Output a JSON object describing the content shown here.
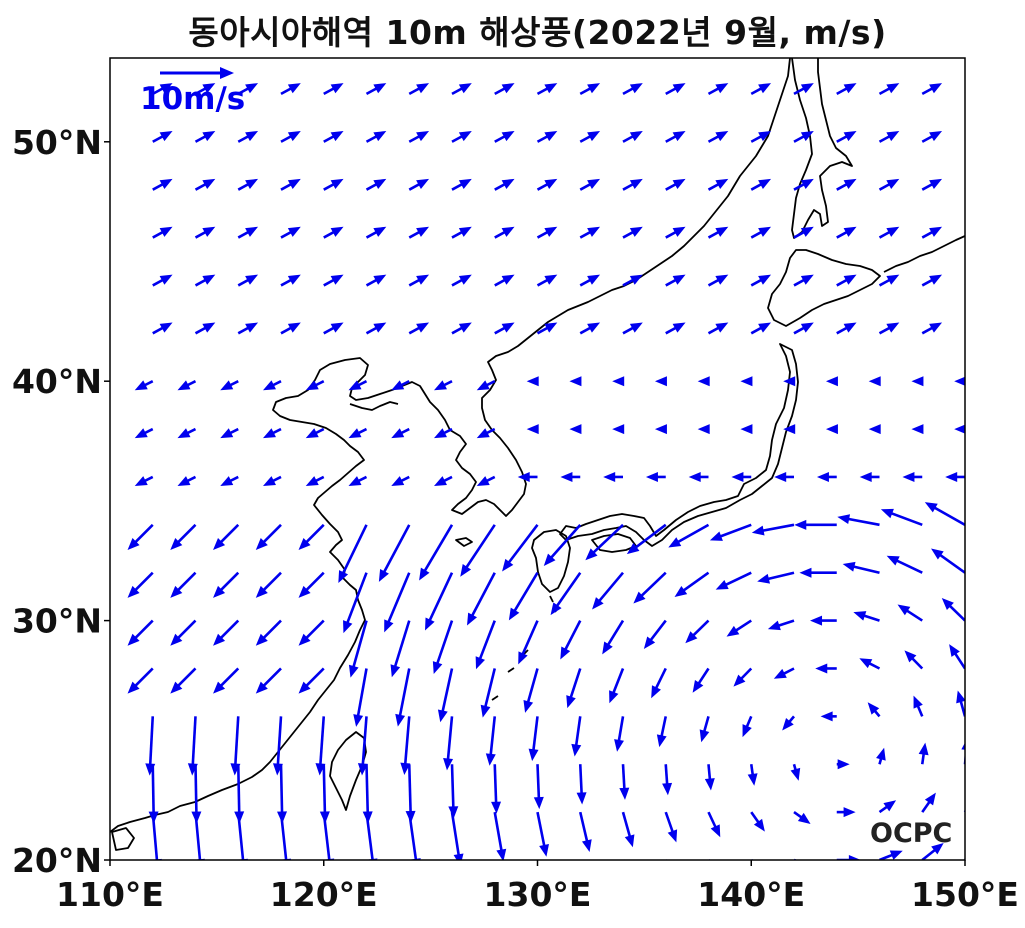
{
  "title": "동아시아해역 10m 해상풍(2022년 9월, m/s)",
  "map": {
    "lon_range": [
      110,
      150
    ],
    "lat_range": [
      20,
      53.5
    ],
    "x_ticks": [
      110,
      120,
      130,
      140,
      150
    ],
    "x_tick_labels": [
      "110°E",
      "120°E",
      "130°E",
      "140°E",
      "150°E"
    ],
    "y_ticks": [
      20,
      30,
      40,
      50
    ],
    "y_tick_labels": [
      "20°N",
      "30°N",
      "40°N",
      "50°N"
    ]
  },
  "scale_arrow": {
    "label": "10m/s",
    "speed_ms": 10
  },
  "logo": "OCPC",
  "colors": {
    "vectors": "#0000ee",
    "coastline": "#000000",
    "frame": "#000000",
    "background": "#ffffff"
  }
}
